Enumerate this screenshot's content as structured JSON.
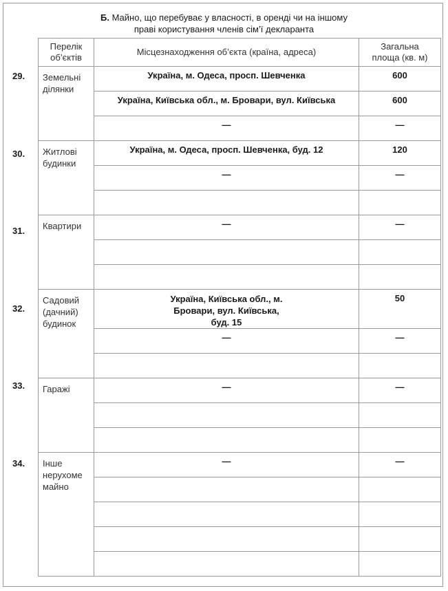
{
  "title": {
    "prefix": "Б.",
    "line1": " Майно, що перебуває у власності, в оренді чи на іншому",
    "line2": "праві користування членів сім’ї декларанта"
  },
  "headers": {
    "objects": "Перелік об’єктів",
    "location": "Місцезнаходження об’єкта (країна, адреса)",
    "area": "Загальна площа (кв. м)"
  },
  "sections": [
    {
      "num": "29.",
      "label": "Земельні ділянки",
      "rows": [
        {
          "address": "Україна, м. Одеса, просп. Шевченка",
          "area": "600"
        },
        {
          "address": "Україна, Київська обл., м. Бровари, вул. Київська",
          "area": "600"
        },
        {
          "address": "—",
          "area": "—"
        }
      ]
    },
    {
      "num": "30.",
      "label": "Житлові будинки",
      "rows": [
        {
          "address": "Україна, м. Одеса, просп. Шевченка, буд. 12",
          "area": "120"
        },
        {
          "address": "—",
          "area": "—"
        },
        {
          "address": "",
          "area": ""
        }
      ]
    },
    {
      "num": "31.",
      "label": "Квартири",
      "rows": [
        {
          "address": "—",
          "area": "—"
        },
        {
          "address": "",
          "area": ""
        },
        {
          "address": "",
          "area": ""
        }
      ]
    },
    {
      "num": "32.",
      "label": "Садовий (дачний) будинок",
      "rows": [
        {
          "address": "Україна, Київська обл., м. Бровари, вул. Київська, буд. 15",
          "area": "50"
        },
        {
          "address": "—",
          "area": "—"
        },
        {
          "address": "",
          "area": ""
        }
      ]
    },
    {
      "num": "33.",
      "label": "Гаражі",
      "rows": [
        {
          "address": "—",
          "area": "—"
        },
        {
          "address": "",
          "area": ""
        },
        {
          "address": "",
          "area": ""
        }
      ]
    },
    {
      "num": "34.",
      "label": "Інше нерухоме майно",
      "rows": [
        {
          "address": "—",
          "area": "—"
        },
        {
          "address": "",
          "area": ""
        },
        {
          "address": "",
          "area": ""
        },
        {
          "address": "",
          "area": ""
        },
        {
          "address": "",
          "area": ""
        }
      ]
    }
  ]
}
